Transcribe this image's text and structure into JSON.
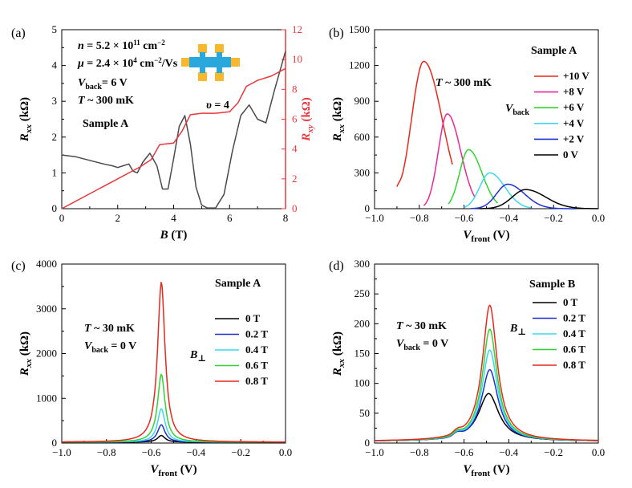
{
  "chart_data": [
    {
      "panel": "(a)",
      "type": "line",
      "title": "",
      "xlabel": "B (T)",
      "ylabel": "R_xx (kΩ)",
      "ylabel_right": "R_xy (kΩ)",
      "xlim": [
        0,
        8
      ],
      "ylim": [
        0,
        5
      ],
      "ylim_right": [
        0,
        12
      ],
      "xticks": [
        "0",
        "2",
        "4",
        "6",
        "8"
      ],
      "yticks": [
        "0",
        "1",
        "2",
        "3",
        "4",
        "5"
      ],
      "yticks_right": [
        "0",
        "2",
        "4",
        "6",
        "8",
        "10",
        "12"
      ],
      "annotations": {
        "n": "n = 5.2 × 10¹¹ cm⁻²",
        "mu": "μ = 2.4 × 10⁴ cm⁻²/Vs",
        "vback": "V_back = 6 V",
        "temp": "T ~ 300 mK",
        "sample": "Sample A",
        "nu": "υ = 4"
      },
      "series": [
        {
          "name": "R_xx",
          "axis": "left",
          "color": "#4a4a4a",
          "x": [
            0,
            0.5,
            1.0,
            1.5,
            1.8,
            2.0,
            2.2,
            2.4,
            2.55,
            2.7,
            2.9,
            3.15,
            3.4,
            3.6,
            3.8,
            4.0,
            4.2,
            4.4,
            4.6,
            4.8,
            5.0,
            5.2,
            5.5,
            5.8,
            6.1,
            6.4,
            6.7,
            7.0,
            7.3,
            7.6,
            8.0
          ],
          "y": [
            1.5,
            1.45,
            1.35,
            1.25,
            1.2,
            1.15,
            1.2,
            1.25,
            1.05,
            1.0,
            1.3,
            1.55,
            1.2,
            0.55,
            0.55,
            1.4,
            2.3,
            2.6,
            1.8,
            0.6,
            0.1,
            0.02,
            0.02,
            0.4,
            1.6,
            2.6,
            2.9,
            2.5,
            2.4,
            3.3,
            4.4
          ]
        },
        {
          "name": "R_xy",
          "axis": "right",
          "color": "#e8383d",
          "x": [
            0,
            1.0,
            2.0,
            2.8,
            3.2,
            3.5,
            4.0,
            4.3,
            4.6,
            5.0,
            5.5,
            6.0,
            6.3,
            6.6,
            7.0,
            7.5,
            8.0
          ],
          "y": [
            0,
            1.0,
            2.0,
            2.8,
            3.3,
            4.3,
            4.4,
            5.2,
            6.3,
            6.4,
            6.4,
            6.5,
            7.1,
            8.2,
            8.6,
            8.9,
            9.4
          ]
        }
      ]
    },
    {
      "panel": "(b)",
      "type": "line",
      "xlabel": "V_front (V)",
      "ylabel": "R_xx (kΩ)",
      "xlim": [
        -1.0,
        0.0
      ],
      "ylim": [
        0,
        1500
      ],
      "xticks": [
        "−1.0",
        "−0.8",
        "−0.6",
        "−0.4",
        "−0.2",
        "0.0"
      ],
      "yticks": [
        "0",
        "300",
        "600",
        "900",
        "1200",
        "1500"
      ],
      "annotations": {
        "sample": "Sample A",
        "temp": "T ~ 300 mK",
        "legend_title": "V_back"
      },
      "series": [
        {
          "name": "+10 V",
          "color": "#e8281e",
          "center": -0.78,
          "peak": 1235,
          "width": 0.055,
          "x_start": -0.9,
          "x_end": -0.65
        },
        {
          "name": "+8 V",
          "color": "#e8289a",
          "center": -0.675,
          "peak": 795,
          "width": 0.04,
          "x_start": -0.78,
          "x_end": -0.55
        },
        {
          "name": "+6 V",
          "color": "#32d232",
          "center": -0.58,
          "peak": 495,
          "width": 0.04,
          "x_start": -0.67,
          "x_end": -0.45
        },
        {
          "name": "+4 V",
          "color": "#3cd8f0",
          "center": -0.485,
          "peak": 300,
          "width": 0.045,
          "x_start": -0.6,
          "x_end": -0.3
        },
        {
          "name": "+2 V",
          "color": "#1f2fd0",
          "center": -0.405,
          "peak": 205,
          "width": 0.05,
          "x_start": -0.57,
          "x_end": -0.1
        },
        {
          "name": "0 V",
          "color": "#000000",
          "center": -0.325,
          "peak": 160,
          "width": 0.06,
          "x_start": -0.53,
          "x_end": 0.0
        }
      ]
    },
    {
      "panel": "(c)",
      "type": "line",
      "xlabel": "V_front (V)",
      "ylabel": "R_xx (kΩ)",
      "xlim": [
        -1.0,
        0.0
      ],
      "ylim": [
        0,
        4000
      ],
      "xticks": [
        "−1.0",
        "−0.8",
        "−0.6",
        "−0.4",
        "−0.2",
        "0.0"
      ],
      "yticks": [
        "0",
        "1000",
        "2000",
        "3000",
        "4000"
      ],
      "annotations": {
        "sample": "Sample A",
        "temp": "T ~ 30 mK",
        "vback": "V_back = 0 V",
        "legend_title": "B⊥"
      },
      "series": [
        {
          "name": "0 T",
          "color": "#000000",
          "center": -0.555,
          "peak": 150,
          "width": 0.02,
          "base": 20
        },
        {
          "name": "0.2 T",
          "color": "#1f2fd0",
          "center": -0.555,
          "peak": 390,
          "width": 0.02,
          "base": 20
        },
        {
          "name": "0.4 T",
          "color": "#3cd8f0",
          "center": -0.555,
          "peak": 750,
          "width": 0.02,
          "base": 20
        },
        {
          "name": "0.6 T",
          "color": "#32d232",
          "center": -0.555,
          "peak": 1520,
          "width": 0.02,
          "base": 20
        },
        {
          "name": "0.8 T",
          "color": "#e8281e",
          "center": -0.555,
          "peak": 3580,
          "width": 0.02,
          "base": 20
        }
      ]
    },
    {
      "panel": "(d)",
      "type": "line",
      "xlabel": "V_front (V)",
      "ylabel": "R_xx (kΩ)",
      "xlim": [
        -1.0,
        0.0
      ],
      "ylim": [
        0,
        300
      ],
      "xticks": [
        "−1.0",
        "−0.8",
        "−0.6",
        "−0.4",
        "−0.2",
        "0.0"
      ],
      "yticks": [
        "0",
        "50",
        "100",
        "150",
        "200",
        "250",
        "300"
      ],
      "annotations": {
        "sample": "Sample B",
        "temp": "T ~ 30 mK",
        "vback": "V_back = 0 V",
        "legend_title": "B⊥"
      },
      "series": [
        {
          "name": "0 T",
          "color": "#000000",
          "center": -0.49,
          "peak": 80,
          "width": 0.055,
          "base": 3
        },
        {
          "name": "0.2 T",
          "color": "#1f2fd0",
          "center": -0.485,
          "peak": 120,
          "width": 0.045,
          "base": 3
        },
        {
          "name": "0.4 T",
          "color": "#3cd8f0",
          "center": -0.485,
          "peak": 153,
          "width": 0.042,
          "base": 3
        },
        {
          "name": "0.6 T",
          "color": "#32d232",
          "center": -0.485,
          "peak": 188,
          "width": 0.04,
          "base": 3
        },
        {
          "name": "0.8 T",
          "color": "#e8281e",
          "center": -0.485,
          "peak": 228,
          "width": 0.04,
          "base": 3
        }
      ]
    }
  ],
  "device_icon": {
    "pad_color": "#f5b82e",
    "body_color": "#2aa7dd"
  }
}
